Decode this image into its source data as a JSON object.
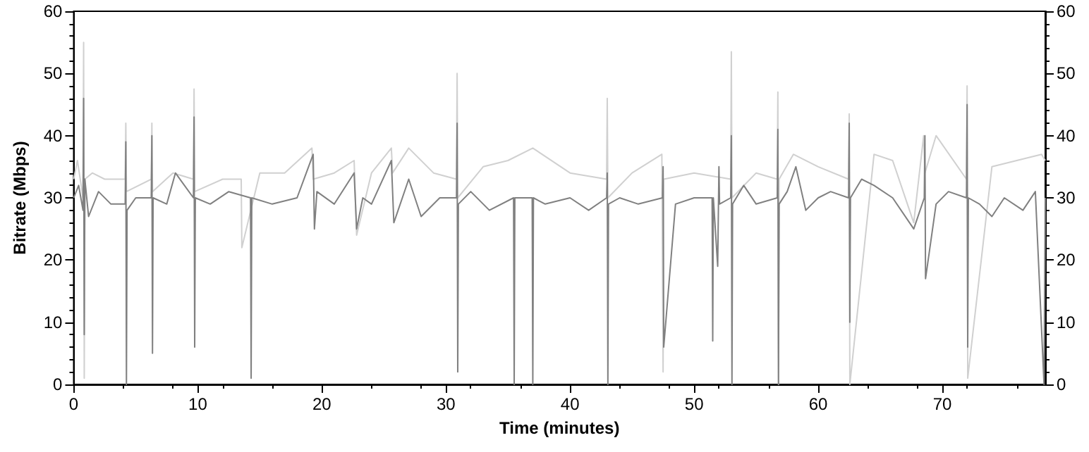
{
  "chart_data": {
    "type": "line",
    "xlabel": "Time (minutes)",
    "ylabel": "Bitrate (Mbps)",
    "xlim": [
      0,
      78.3
    ],
    "xticks": [
      0,
      10,
      20,
      30,
      40,
      50,
      60,
      70
    ],
    "ylim": [
      0,
      60
    ],
    "yticks": [
      0,
      10,
      20,
      30,
      40,
      50,
      60
    ],
    "y2lim": [
      0,
      60
    ],
    "y2ticks": [
      0,
      10,
      20,
      30,
      40,
      50,
      60
    ],
    "grid": false,
    "marker": "none",
    "line_style": "solid",
    "series": [
      {
        "color": "#d0d0d0",
        "x": [
          0,
          0.3,
          0.75,
          0.8,
          0.85,
          0.9,
          1.5,
          2.5,
          4.15,
          4.2,
          4.25,
          6.25,
          6.3,
          6.35,
          8,
          9.65,
          9.7,
          9.75,
          12,
          13.5,
          13.55,
          15,
          17,
          19.2,
          19.3,
          21,
          22.6,
          22.8,
          24,
          25.6,
          25.7,
          27,
          29,
          30.85,
          30.9,
          30.95,
          33,
          35,
          37,
          40,
          42.95,
          43,
          43.05,
          45,
          47.4,
          47.5,
          47.55,
          50,
          52.95,
          53,
          53.05,
          55,
          56.7,
          56.75,
          56.8,
          56.85,
          58,
          60,
          62.45,
          62.5,
          62.55,
          64.5,
          66,
          67.7,
          68.5,
          68.6,
          69.5,
          71.95,
          72,
          72.05,
          74,
          76,
          78,
          78.3
        ],
        "values": [
          33,
          36,
          30,
          55,
          1,
          33,
          34,
          33,
          33,
          42,
          31,
          33,
          42,
          31,
          34,
          33,
          47.5,
          31,
          33,
          33,
          22,
          34,
          34,
          38,
          33,
          34,
          36,
          24,
          34,
          38,
          34,
          38,
          34,
          33,
          50,
          30,
          35,
          36,
          38,
          34,
          33,
          46,
          30,
          34,
          37,
          2,
          33,
          34,
          33,
          53.5,
          30,
          34,
          33,
          47,
          0,
          33,
          37,
          35,
          33,
          43.5,
          0,
          37,
          36,
          26,
          40,
          34,
          40,
          33,
          48,
          1,
          35,
          36,
          37,
          36
        ]
      },
      {
        "color": "#808080",
        "x": [
          0,
          0.4,
          0.75,
          0.8,
          0.85,
          0.9,
          1.2,
          2,
          3,
          4.15,
          4.2,
          4.25,
          4.3,
          5,
          6.25,
          6.3,
          6.35,
          6.4,
          7.5,
          8.2,
          9.65,
          9.7,
          9.75,
          9.8,
          11,
          12.5,
          14.25,
          14.3,
          14.35,
          16,
          18,
          19.3,
          19.4,
          19.6,
          21,
          22.6,
          22.8,
          23.3,
          24,
          25.6,
          25.8,
          27,
          28,
          29.5,
          30.85,
          30.9,
          30.95,
          31,
          32,
          33.5,
          35.45,
          35.5,
          35.55,
          36.95,
          37,
          37.05,
          38,
          40,
          41.5,
          42.95,
          43,
          43.05,
          43.1,
          44,
          45.5,
          47.45,
          47.5,
          47.55,
          48.5,
          50,
          51.45,
          51.5,
          51.55,
          51.9,
          52,
          52.05,
          52.95,
          53,
          53.05,
          53.1,
          54,
          55,
          56.7,
          56.75,
          56.8,
          56.85,
          57.5,
          58.2,
          59,
          60,
          61,
          62.45,
          62.5,
          62.55,
          62.6,
          63.5,
          64.5,
          66,
          67.7,
          68.55,
          68.6,
          68.65,
          69.5,
          70.5,
          71.95,
          72,
          72.05,
          72.1,
          73,
          74,
          75,
          76.5,
          77.5,
          78.2,
          78.3
        ],
        "values": [
          30,
          32,
          28,
          46,
          8,
          33,
          27,
          31,
          29,
          29,
          39,
          0,
          28,
          30,
          30,
          40,
          5,
          30,
          29,
          34,
          30,
          43,
          6,
          30,
          29,
          31,
          30,
          1,
          30,
          29,
          30,
          37,
          25,
          31,
          29,
          34,
          25,
          30,
          29,
          36,
          26,
          33,
          27,
          30,
          30,
          42,
          2,
          29,
          31,
          28,
          30,
          0,
          30,
          30,
          0,
          30,
          29,
          30,
          28,
          30,
          34,
          0,
          29,
          30,
          29,
          30,
          35,
          6,
          29,
          30,
          30,
          7,
          30,
          19,
          35,
          29,
          30,
          40,
          0,
          29,
          32,
          29,
          30,
          41,
          0,
          29,
          31,
          35,
          28,
          30,
          31,
          30,
          42,
          10,
          30,
          33,
          32,
          30,
          25,
          30,
          40,
          17,
          29,
          31,
          30,
          45,
          6,
          30,
          29,
          27,
          30,
          28,
          31,
          0,
          30
        ]
      }
    ]
  }
}
